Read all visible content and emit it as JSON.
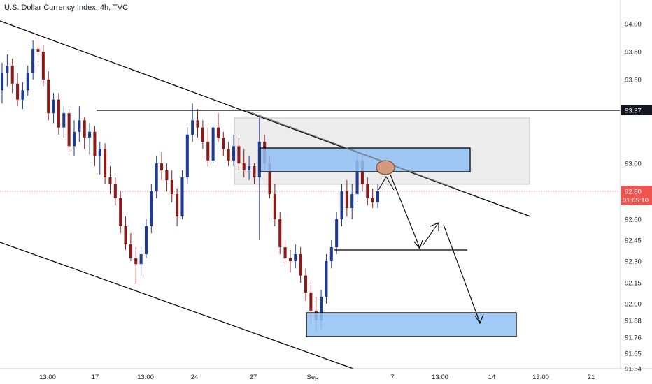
{
  "chart_data": {
    "type": "candlestick",
    "title": "U.S. Dollar Currency Index, 4h, TVC",
    "x_tick_labels": [
      "13:00",
      "17",
      "13:00",
      "24",
      "27",
      "Sep",
      "7",
      "13:00",
      "14",
      "13:00",
      "21"
    ],
    "y_tick_labels": [
      "94.00",
      "93.80",
      "93.60",
      "93.37",
      "93.00",
      "92.80",
      "92.60",
      "92.45",
      "92.30",
      "92.15",
      "92.00",
      "91.88",
      "91.76",
      "91.65",
      "91.54"
    ],
    "ylim": [
      91.54,
      94.0
    ],
    "last_price": "92.80",
    "countdown": "01:05:10",
    "horizontal_level": "93.37",
    "colors": {
      "up": "#1f3a93",
      "down": "#8b1a1a",
      "zone_fill": "#90c2f5",
      "box_fill": "#e6e6e6",
      "price_line": "#e0625c",
      "circle_fill": "#d49a7f",
      "axis_badge": "#131722",
      "price_badge": "#ef5350"
    },
    "candles": [
      [
        93.52,
        93.72,
        93.42,
        93.65
      ],
      [
        93.65,
        93.78,
        93.55,
        93.7
      ],
      [
        93.7,
        93.75,
        93.5,
        93.57
      ],
      [
        93.57,
        93.65,
        93.4,
        93.45
      ],
      [
        93.45,
        93.58,
        93.38,
        93.52
      ],
      [
        93.52,
        93.7,
        93.48,
        93.65
      ],
      [
        93.65,
        93.88,
        93.6,
        93.82
      ],
      [
        93.82,
        93.9,
        93.7,
        93.8
      ],
      [
        93.8,
        93.85,
        93.55,
        93.6
      ],
      [
        93.6,
        93.66,
        93.3,
        93.35
      ],
      [
        93.35,
        93.5,
        93.28,
        93.45
      ],
      [
        93.45,
        93.5,
        93.2,
        93.25
      ],
      [
        93.25,
        93.4,
        93.18,
        93.35
      ],
      [
        93.35,
        93.38,
        93.08,
        93.12
      ],
      [
        93.12,
        93.3,
        93.05,
        93.22
      ],
      [
        93.22,
        93.4,
        93.15,
        93.3
      ],
      [
        93.3,
        93.32,
        93.1,
        93.18
      ],
      [
        93.18,
        93.28,
        93.06,
        93.22
      ],
      [
        93.22,
        93.26,
        92.98,
        93.05
      ],
      [
        93.05,
        93.15,
        92.92,
        93.1
      ],
      [
        93.1,
        93.14,
        92.85,
        92.9
      ],
      [
        92.9,
        92.98,
        92.78,
        92.85
      ],
      [
        92.85,
        92.9,
        92.7,
        92.75
      ],
      [
        92.75,
        92.8,
        92.5,
        92.55
      ],
      [
        92.55,
        92.62,
        92.38,
        92.42
      ],
      [
        92.42,
        92.5,
        92.3,
        92.32
      ],
      [
        92.32,
        92.4,
        92.14,
        92.28
      ],
      [
        92.28,
        92.4,
        92.2,
        92.35
      ],
      [
        92.35,
        92.6,
        92.32,
        92.55
      ],
      [
        92.55,
        92.85,
        92.5,
        92.8
      ],
      [
        92.8,
        93.05,
        92.75,
        93.0
      ],
      [
        93.0,
        93.08,
        92.88,
        92.95
      ],
      [
        92.95,
        93.0,
        92.8,
        92.88
      ],
      [
        92.88,
        92.95,
        92.72,
        92.78
      ],
      [
        92.78,
        92.82,
        92.55,
        92.62
      ],
      [
        92.62,
        92.95,
        92.6,
        92.9
      ],
      [
        92.9,
        93.25,
        92.85,
        93.2
      ],
      [
        93.2,
        93.42,
        93.15,
        93.3
      ],
      [
        93.3,
        93.38,
        93.18,
        93.25
      ],
      [
        93.25,
        93.3,
        93.1,
        93.15
      ],
      [
        93.15,
        93.25,
        92.98,
        93.02
      ],
      [
        93.02,
        93.28,
        93.0,
        93.25
      ],
      [
        93.25,
        93.35,
        93.15,
        93.18
      ],
      [
        93.18,
        93.22,
        93.05,
        93.1
      ],
      [
        93.1,
        93.15,
        92.98,
        93.02
      ],
      [
        93.02,
        93.2,
        92.98,
        93.12
      ],
      [
        93.12,
        93.18,
        92.95,
        93.0
      ],
      [
        93.0,
        93.1,
        92.9,
        92.95
      ],
      [
        92.95,
        93.05,
        92.88,
        92.98
      ],
      [
        92.98,
        93.0,
        92.85,
        92.9
      ],
      [
        92.9,
        93.32,
        92.45,
        93.15
      ],
      [
        93.15,
        93.2,
        92.95,
        93.0
      ],
      [
        93.0,
        93.05,
        92.75,
        92.78
      ],
      [
        92.78,
        92.85,
        92.55,
        92.6
      ],
      [
        92.6,
        92.65,
        92.35,
        92.4
      ],
      [
        92.4,
        92.45,
        92.28,
        92.32
      ],
      [
        92.32,
        92.38,
        92.22,
        92.3
      ],
      [
        92.3,
        92.42,
        92.25,
        92.35
      ],
      [
        92.35,
        92.4,
        92.15,
        92.2
      ],
      [
        92.2,
        92.25,
        92.02,
        92.08
      ],
      [
        92.08,
        92.15,
        91.85,
        91.95
      ],
      [
        91.95,
        92.05,
        91.8,
        91.88
      ],
      [
        91.88,
        92.1,
        91.82,
        92.05
      ],
      [
        92.05,
        92.35,
        92.0,
        92.3
      ],
      [
        92.3,
        92.45,
        92.25,
        92.4
      ],
      [
        92.4,
        92.65,
        92.35,
        92.6
      ],
      [
        92.6,
        92.85,
        92.55,
        92.8
      ],
      [
        92.8,
        92.88,
        92.62,
        92.68
      ],
      [
        92.68,
        92.85,
        92.6,
        92.78
      ],
      [
        92.78,
        93.08,
        92.72,
        93.02
      ],
      [
        93.02,
        93.06,
        92.8,
        92.85
      ],
      [
        92.85,
        92.9,
        92.7,
        92.75
      ],
      [
        92.75,
        92.82,
        92.68,
        92.72
      ],
      [
        92.72,
        92.85,
        92.68,
        92.8
      ]
    ]
  },
  "price_axis": {
    "last_price_label": "92.80",
    "countdown_label": "01:05:10",
    "level_label": "93.37"
  }
}
